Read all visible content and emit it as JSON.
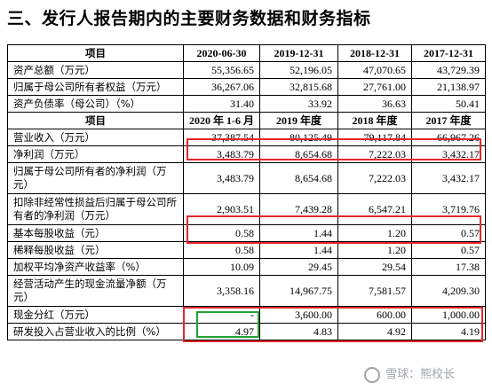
{
  "title": "三、发行人报告期内的主要财务数据和财务指标",
  "table": {
    "header1": [
      "项目",
      "2020-06-30",
      "2019-12-31",
      "2018-12-31",
      "2017-12-31"
    ],
    "rows1": [
      [
        "资产总额（万元）",
        "55,356.65",
        "52,196.05",
        "47,070.65",
        "43,729.39"
      ],
      [
        "归属于母公司所有者权益（万元）",
        "36,267.06",
        "32,815.68",
        "27,761.00",
        "21,138.97"
      ],
      [
        "资产负债率（母公司）（%）",
        "31.40",
        "33.92",
        "36.63",
        "50.41"
      ]
    ],
    "header2": [
      "项目",
      "2020 年 1-6 月",
      "2019 年度",
      "2018 年度",
      "2017 年度"
    ],
    "rows2": [
      [
        "营业收入（万元）",
        "37,387.54",
        "80,125.49",
        "79,117.84",
        "66,967.26"
      ],
      [
        "净利润（万元）",
        "3,483.79",
        "8,654.68",
        "7,222.03",
        "3,432.17"
      ],
      [
        "归属于母公司所有者的净利润（万元）",
        "3,483.79",
        "8,654.68",
        "7,222.03",
        "3,432.17"
      ],
      [
        "扣除非经常性损益后归属于母公司所有者的净利润（万元）",
        "2,903.51",
        "7,439.28",
        "6,547.21",
        "3,719.76"
      ],
      [
        "基本每股收益（元）",
        "0.58",
        "1.44",
        "1.20",
        "0.57"
      ],
      [
        "稀释每股收益（元）",
        "0.58",
        "1.44",
        "1.20",
        "0.57"
      ],
      [
        "加权平均净资产收益率（%）",
        "10.09",
        "29.45",
        "29.54",
        "17.38"
      ],
      [
        "经营活动产生的现金流量净额（万元）",
        "3,358.16",
        "14,967.75",
        "7,581.57",
        "4,209.30"
      ],
      [
        "现金分红（万元）",
        "-",
        "3,600.00",
        "600.00",
        "1,000.00"
      ],
      [
        "研发投入占营业收入的比例（%）",
        "4.97",
        "4.83",
        "4.92",
        "4.19"
      ]
    ]
  },
  "watermark": "雪球：熊校长",
  "colors": {
    "highlight_red": "#e5262a",
    "highlight_green": "#22a035"
  }
}
